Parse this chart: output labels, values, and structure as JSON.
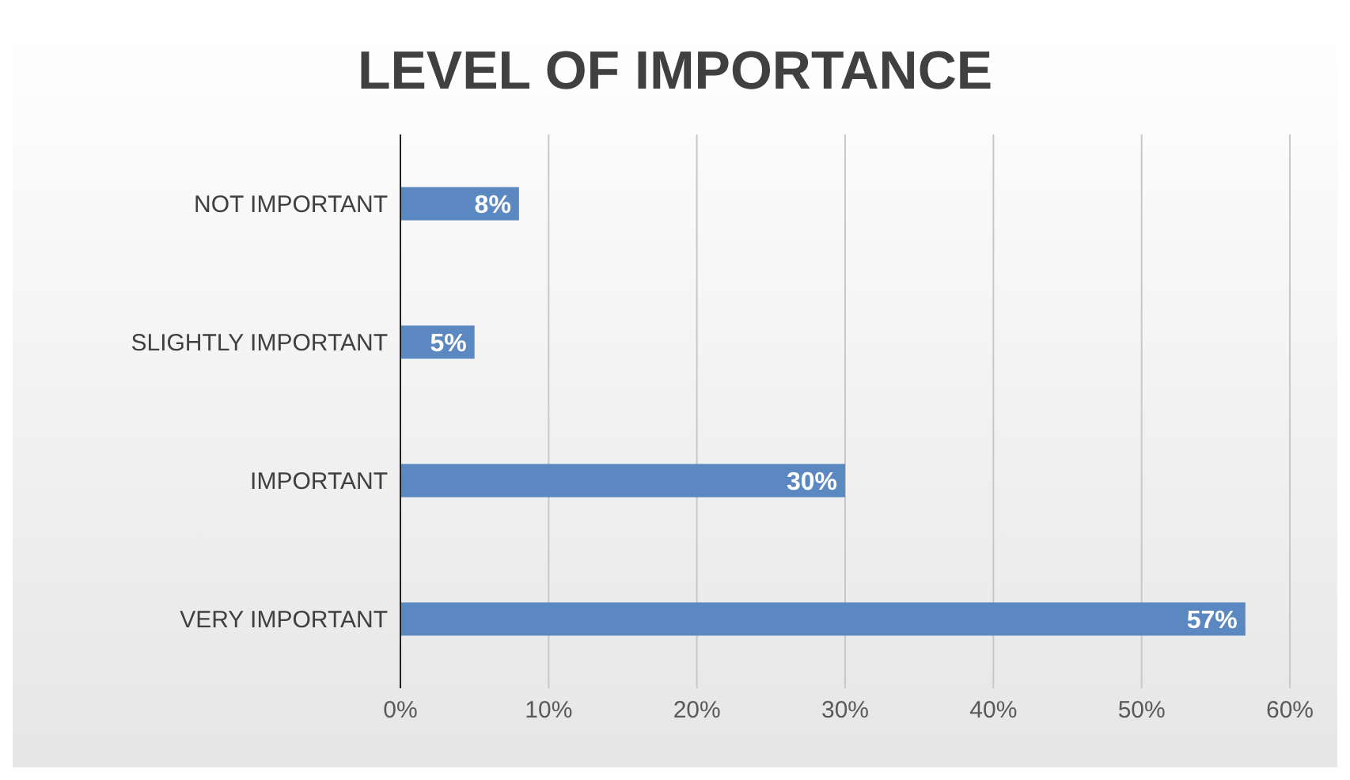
{
  "chart_data": {
    "type": "bar",
    "title": "LEVEL OF IMPORTANCE",
    "orientation": "horizontal",
    "categories": [
      "NOT IMPORTANT",
      "SLIGHTLY IMPORTANT",
      "IMPORTANT",
      "VERY IMPORTANT"
    ],
    "values": [
      8,
      5,
      30,
      57
    ],
    "value_labels": [
      "8%",
      "5%",
      "30%",
      "57%"
    ],
    "color": "#5b88c1",
    "xlim": [
      0,
      60
    ],
    "xticks": [
      {
        "value": 0,
        "label": "0%"
      },
      {
        "value": 10,
        "label": "10%"
      },
      {
        "value": 20,
        "label": "20%"
      },
      {
        "value": 30,
        "label": "30%"
      },
      {
        "value": 40,
        "label": "40%"
      },
      {
        "value": 50,
        "label": "50%"
      },
      {
        "value": 60,
        "label": "60%"
      }
    ],
    "grid": "x"
  }
}
